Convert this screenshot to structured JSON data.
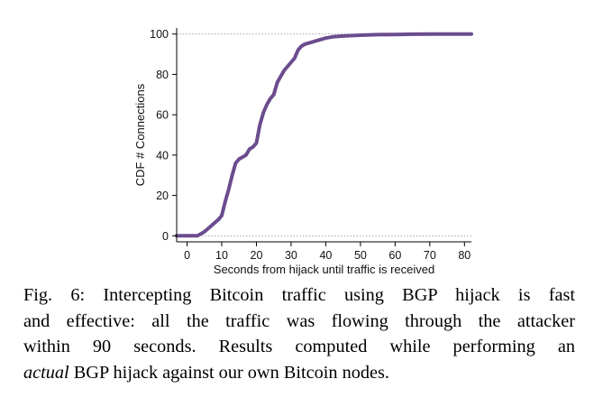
{
  "chart_data": {
    "type": "line",
    "title": "",
    "xlabel": "Seconds from hijack until traffic is received",
    "ylabel": "CDF # Connections",
    "xlim": [
      -3,
      82
    ],
    "ylim": [
      -3,
      103
    ],
    "x_ticks": [
      0,
      10,
      20,
      30,
      40,
      50,
      60,
      70,
      80
    ],
    "y_ticks": [
      0,
      20,
      40,
      60,
      80,
      100
    ],
    "reference_lines_y": [
      0,
      100
    ],
    "grid": false,
    "series": [
      {
        "color": "#6b4c8e",
        "x": [
          -3,
          3,
          5,
          7,
          9,
          10,
          11,
          12,
          13,
          14,
          15,
          16,
          17,
          18,
          19,
          20,
          21,
          22,
          23,
          24,
          25,
          26,
          27,
          28,
          29,
          30,
          31,
          32,
          33,
          34,
          35,
          36,
          37,
          38,
          40,
          42,
          45,
          50,
          55,
          60,
          65,
          70,
          75,
          82
        ],
        "y": [
          0,
          0,
          2,
          5,
          8,
          10,
          17,
          23,
          30,
          36,
          38,
          39,
          40,
          43,
          44,
          46,
          55,
          61,
          65,
          68,
          70,
          76,
          79,
          82,
          84,
          86,
          88,
          92,
          94,
          95,
          95.5,
          96,
          96.5,
          97,
          98,
          98.6,
          99,
          99.4,
          99.7,
          99.8,
          99.9,
          100,
          100,
          100
        ]
      }
    ]
  },
  "caption": {
    "lines": [
      "Fig. 6: Intercepting Bitcoin traffic using BGP hijack is fast",
      "and effective: all the traffic was flowing through the attacker",
      "within 90 seconds. Results computed while performing an"
    ],
    "last_italic": "actual",
    "last_rest": " BGP hijack against our own Bitcoin nodes."
  }
}
